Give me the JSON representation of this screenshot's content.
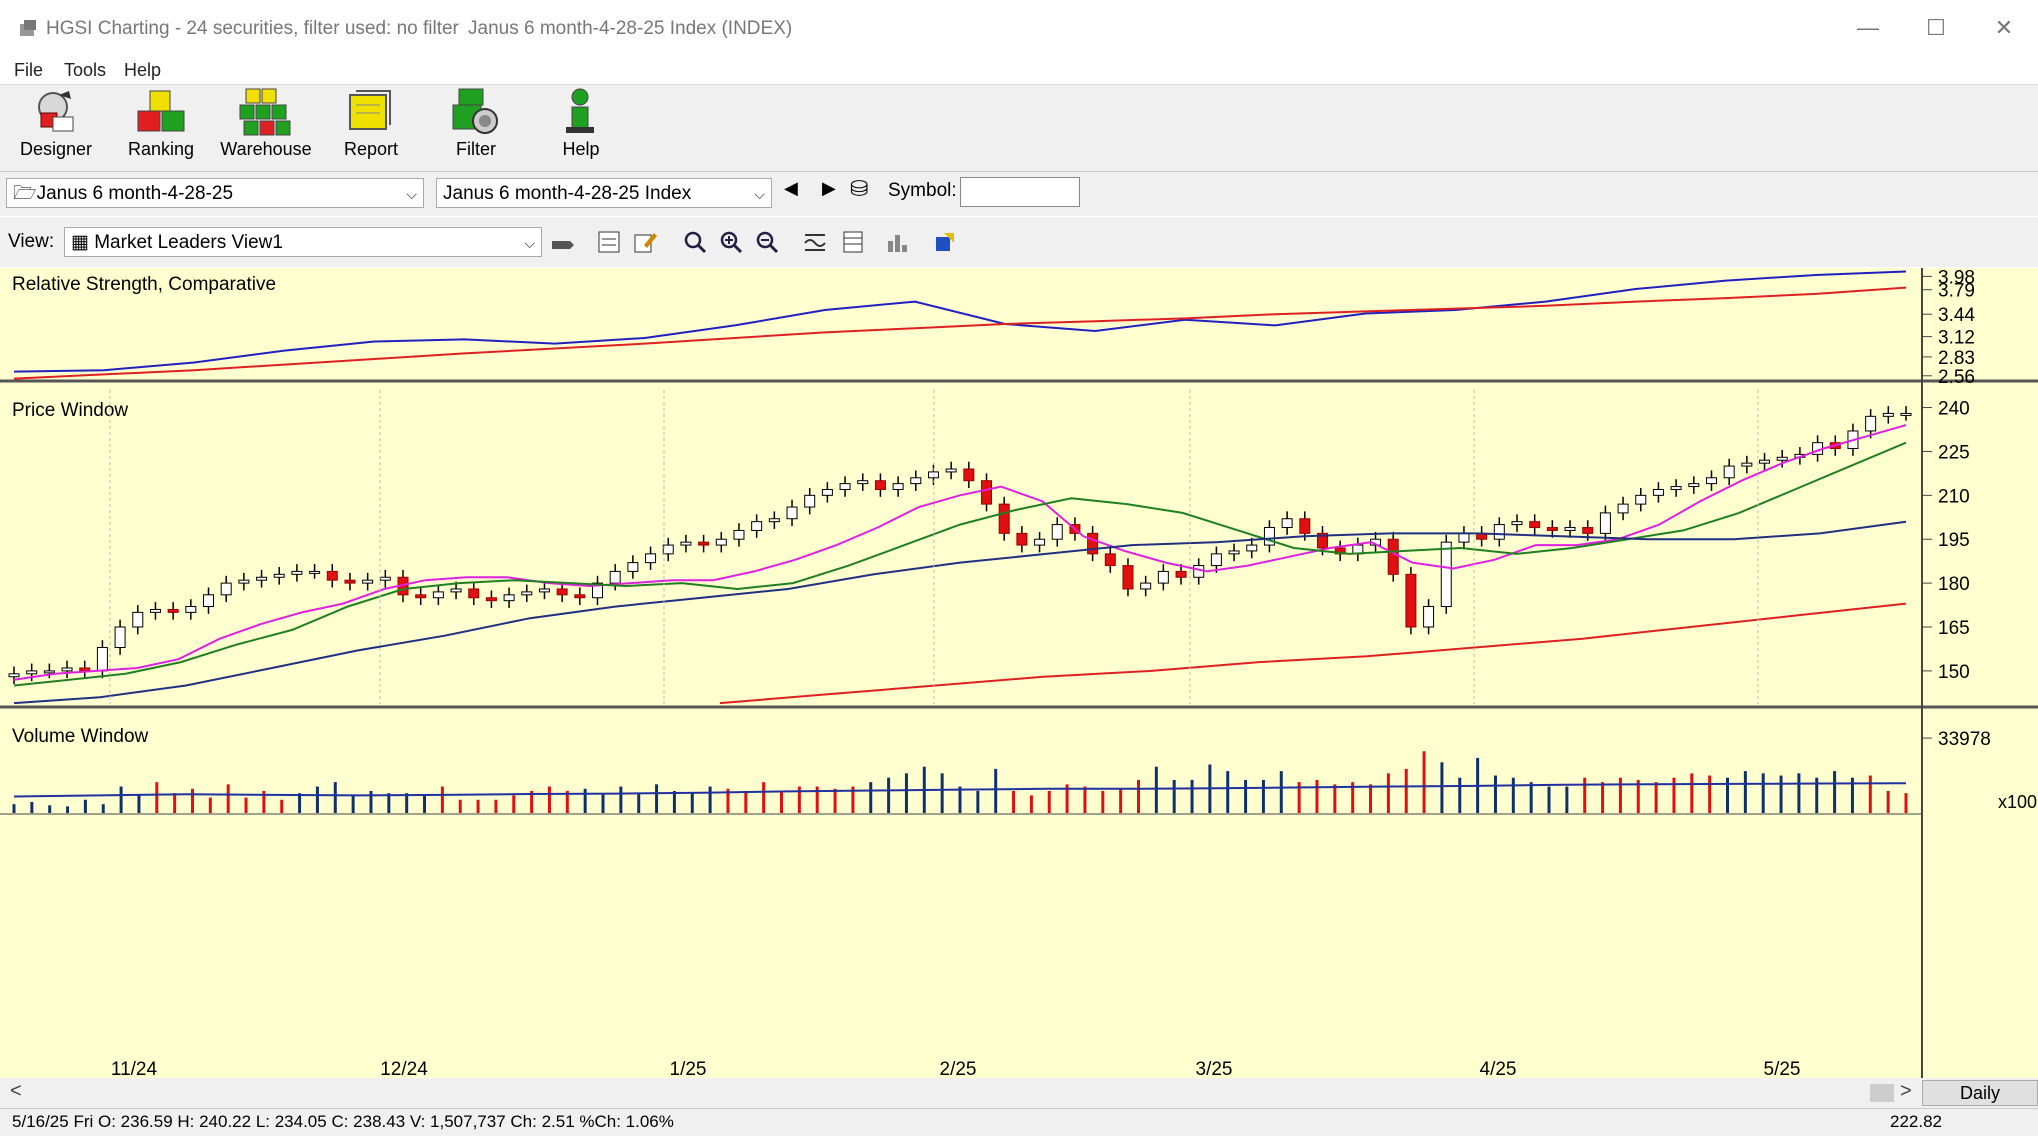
{
  "window": {
    "title": "HGSI Charting - 24 securities, filter used: no filter",
    "subtitle": "Janus 6 month-4-28-25 Index (INDEX)",
    "minimize": "—",
    "maximize": "☐",
    "close": "✕"
  },
  "menu": [
    "File",
    "Tools",
    "Help"
  ],
  "toolbar": {
    "buttons": [
      {
        "label": "Designer",
        "icon": "designer-icon"
      },
      {
        "label": "Ranking",
        "icon": "ranking-icon"
      },
      {
        "label": "Warehouse",
        "icon": "warehouse-icon"
      },
      {
        "label": "Report",
        "icon": "report-icon"
      },
      {
        "label": "Filter",
        "icon": "filter-icon"
      },
      {
        "label": "Help",
        "icon": "help-icon"
      }
    ]
  },
  "selectors": {
    "list": "Janus 6 month-4-28-25",
    "security": "Janus 6 month-4-28-25 Index",
    "symbol_label": "Symbol:",
    "symbol_value": "",
    "view_label": "View:",
    "view_value": "Market Leaders View1"
  },
  "status": {
    "text": "5/16/25 Fri O: 236.59 H: 240.22 L: 234.05 C: 238.43 V: 1,507,737 Ch: 2.51 %Ch: 1.06%",
    "value": "222.82"
  },
  "period": "Daily",
  "chart_data": [
    {
      "type": "line",
      "title": "Relative Strength, Comparative",
      "y_ticks": [
        3.98,
        3.79,
        3.44,
        3.12,
        2.83,
        2.56
      ],
      "ylim": [
        2.5,
        4.1
      ],
      "x": [
        0,
        6,
        12,
        18,
        24,
        30,
        36,
        42,
        48,
        54,
        60,
        66,
        72,
        78,
        84,
        90,
        96,
        102,
        108,
        114,
        120,
        126
      ],
      "series": [
        {
          "color": "#2020c0",
          "values": [
            2.62,
            2.64,
            2.75,
            2.92,
            3.05,
            3.08,
            3.02,
            3.1,
            3.28,
            3.5,
            3.62,
            3.3,
            3.2,
            3.36,
            3.28,
            3.45,
            3.5,
            3.62,
            3.8,
            3.92,
            4.0,
            4.05
          ]
        },
        {
          "color": "#e02020",
          "values": [
            2.52,
            2.58,
            2.64,
            2.72,
            2.8,
            2.88,
            2.95,
            3.02,
            3.1,
            3.18,
            3.24,
            3.3,
            3.34,
            3.38,
            3.44,
            3.48,
            3.52,
            3.56,
            3.62,
            3.67,
            3.73,
            3.82
          ]
        }
      ]
    },
    {
      "type": "candlestick",
      "title": "Price Window",
      "y_ticks": [
        240,
        225,
        210,
        195,
        180,
        165,
        150
      ],
      "ylim": [
        138,
        246
      ],
      "x_labels": [
        "11/24",
        "12/24",
        "1/25",
        "2/25",
        "3/25",
        "4/25",
        "5/25"
      ],
      "close": [
        149,
        150,
        150,
        151,
        150,
        158,
        165,
        170,
        171,
        170,
        172,
        176,
        180,
        181,
        182,
        183,
        184,
        184,
        181,
        180,
        181,
        182,
        176,
        175,
        177,
        178,
        175,
        174,
        176,
        177,
        178,
        176,
        175,
        180,
        184,
        187,
        190,
        193,
        194,
        193,
        195,
        198,
        201,
        202,
        206,
        210,
        212,
        214,
        215,
        212,
        214,
        216,
        218,
        219,
        215,
        207,
        197,
        193,
        195,
        200,
        197,
        190,
        186,
        178,
        180,
        184,
        182,
        186,
        190,
        191,
        193,
        199,
        202,
        197,
        192,
        190,
        193,
        195,
        183,
        165,
        172,
        194,
        197,
        195,
        200,
        201,
        199,
        198,
        199,
        197,
        204,
        207,
        210,
        212,
        213,
        214,
        216,
        220,
        221,
        222,
        223,
        224,
        228,
        226,
        232,
        237,
        238,
        238
      ],
      "series": [
        {
          "name": "",
          "color": "#e020e0",
          "values": [
            147,
            149,
            150,
            151,
            154,
            161,
            166,
            170,
            173,
            178,
            181,
            182,
            182,
            180,
            179,
            180,
            181,
            181,
            184,
            188,
            193,
            199,
            206,
            210,
            213,
            208,
            196,
            191,
            187,
            184,
            186,
            189,
            192,
            194,
            187,
            185,
            188,
            193,
            193,
            195,
            200,
            208,
            215,
            221,
            226,
            230,
            234
          ]
        },
        {
          "name": "",
          "color": "#208020",
          "values": [
            145,
            147,
            149,
            153,
            159,
            164,
            172,
            178,
            180,
            181,
            180,
            179,
            180,
            178,
            180,
            186,
            193,
            200,
            205,
            209,
            207,
            204,
            198,
            192,
            190,
            191,
            192,
            190,
            192,
            195,
            198,
            204,
            212,
            220,
            228
          ]
        },
        {
          "name": "",
          "color": "#203080",
          "values": [
            139,
            141,
            145,
            151,
            157,
            162,
            168,
            172,
            175,
            178,
            183,
            187,
            190,
            193,
            194,
            196,
            197,
            197,
            196,
            195,
            195,
            197,
            201
          ]
        },
        {
          "name": "",
          "color": "#e02020",
          "values": [
            139,
            142,
            145,
            148,
            150,
            153,
            155,
            158,
            161,
            165,
            169,
            173
          ]
        }
      ]
    },
    {
      "type": "bar",
      "title": "Volume Window",
      "y_ticks": [
        33978
      ],
      "unit": "x100",
      "ylim": [
        0,
        44000
      ],
      "values": [
        4000,
        5000,
        3500,
        3000,
        6000,
        4000,
        12000,
        8000,
        14000,
        9000,
        11000,
        7000,
        13000,
        7000,
        10000,
        6000,
        9000,
        12000,
        14000,
        8000,
        10000,
        9000,
        9000,
        8000,
        12000,
        6000,
        6000,
        6000,
        8000,
        10000,
        12000,
        10000,
        11000,
        9000,
        12000,
        9000,
        13000,
        10000,
        9000,
        12000,
        11000,
        10000,
        14000,
        10000,
        12000,
        12000,
        11000,
        12000,
        14000,
        16000,
        18000,
        21000,
        18000,
        12000,
        10000,
        20000,
        10000,
        8000,
        10000,
        13000,
        12000,
        10000,
        11000,
        15000,
        21000,
        15000,
        15000,
        22000,
        19000,
        15000,
        15000,
        19000,
        14000,
        15000,
        13000,
        14000,
        13000,
        18000,
        20000,
        28000,
        23000,
        16000,
        25000,
        17000,
        16000,
        14000,
        12000,
        12000,
        16000,
        14000,
        16000,
        15000,
        14000,
        16000,
        18000,
        17000,
        16000,
        19000,
        18000,
        17000,
        18000,
        16000,
        19000,
        16000,
        17000,
        10000,
        9000
      ],
      "series": [
        {
          "name": "",
          "color": "#2030a0",
          "values": [
            7500,
            8000,
            8500,
            8200,
            8000,
            8200,
            8600,
            8800,
            9200,
            9800,
            10200,
            10600,
            11000,
            11000,
            11200,
            11600,
            12000,
            12300,
            12800,
            13000,
            13200,
            13400,
            13500
          ]
        }
      ]
    }
  ]
}
